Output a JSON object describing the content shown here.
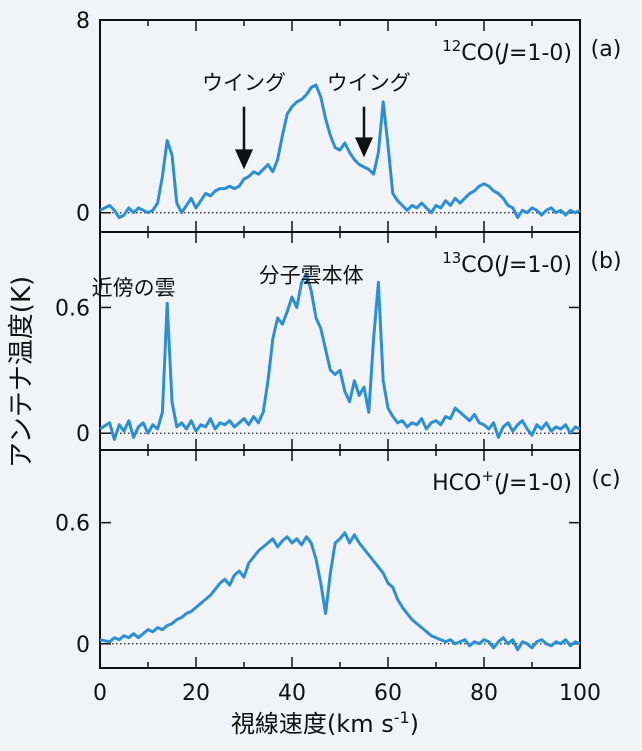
{
  "figure": {
    "ylabel": "アンテナ温度(K)",
    "xlabel": "視線速度(km s",
    "xlabel_sup": "-1",
    "xlabel_close": ")",
    "x_ticks": [
      "0",
      "20",
      "40",
      "60",
      "80",
      "100"
    ]
  },
  "chart_data": [
    {
      "type": "line",
      "panel": "(a)",
      "label_sup": "12",
      "label_main": "CO(",
      "label_j": "J",
      "label_tail": "=1-0)",
      "xlim": [
        0,
        100
      ],
      "ylim": [
        -0.8,
        8
      ],
      "yticks": [
        "0",
        "8"
      ],
      "ytick_values": [
        0,
        8
      ],
      "annotations": [
        {
          "text": "ウイング",
          "x": 30,
          "y": 5.1
        },
        {
          "text": "ウイング",
          "x": 56,
          "y": 5.1
        }
      ],
      "arrows": [
        {
          "x": 30,
          "y_from": 4.4,
          "y_to": 1.8
        },
        {
          "x": 55,
          "y_from": 4.4,
          "y_to": 2.3
        }
      ],
      "baseline": 0,
      "color": "#2b8fd6",
      "series": [
        {
          "x": [
            0,
            2,
            3,
            4,
            5,
            6,
            7,
            8,
            9,
            10,
            11,
            12,
            13,
            14,
            15,
            16,
            17,
            18,
            19,
            20,
            21,
            22,
            23,
            24,
            25,
            26,
            27,
            28,
            29,
            30,
            31,
            32,
            33,
            34,
            35,
            36,
            37,
            38,
            39,
            40,
            41,
            42,
            43,
            44,
            45,
            46,
            47,
            48,
            49,
            50,
            51,
            52,
            53,
            54,
            55,
            56,
            57,
            58,
            59,
            60,
            61,
            62,
            63,
            64,
            65,
            66,
            67,
            68,
            69,
            70,
            71,
            72,
            73,
            74,
            75,
            76,
            77,
            78,
            79,
            80,
            81,
            82,
            83,
            84,
            85,
            86,
            87,
            88,
            89,
            90,
            91,
            92,
            93,
            94,
            95,
            96,
            97,
            98,
            99,
            100
          ],
          "y": [
            0.1,
            0.3,
            0.1,
            -0.2,
            -0.1,
            0.2,
            0.0,
            0.2,
            0.1,
            0.0,
            0.1,
            0.4,
            1.5,
            3.0,
            2.4,
            0.4,
            0.0,
            0.3,
            0.6,
            0.2,
            0.5,
            0.8,
            0.7,
            0.9,
            1.0,
            1.0,
            1.1,
            1.0,
            1.1,
            1.4,
            1.5,
            1.7,
            1.6,
            1.8,
            2.0,
            1.7,
            2.2,
            3.2,
            4.1,
            4.4,
            4.6,
            4.7,
            4.9,
            5.2,
            5.3,
            4.8,
            3.9,
            3.2,
            2.7,
            2.6,
            2.9,
            2.5,
            2.2,
            2.0,
            1.9,
            1.8,
            1.6,
            2.5,
            4.6,
            2.8,
            0.8,
            0.5,
            0.3,
            0.1,
            0.3,
            0.2,
            0.4,
            0.2,
            0.0,
            0.3,
            0.2,
            0.5,
            0.3,
            0.6,
            0.4,
            0.6,
            0.8,
            0.9,
            1.1,
            1.2,
            1.1,
            0.9,
            0.8,
            0.6,
            0.3,
            0.2,
            -0.2,
            0.1,
            0.0,
            0.2,
            0.1,
            -0.1,
            0.1,
            0.2,
            0.0,
            0.1,
            -0.1,
            0.1,
            0.0,
            0.1
          ]
        }
      ]
    },
    {
      "type": "line",
      "panel": "(b)",
      "label_sup": "13",
      "label_main": "CO(",
      "label_j": "J",
      "label_tail": "=1-0)",
      "xlim": [
        0,
        100
      ],
      "ylim": [
        -0.08,
        0.96
      ],
      "yticks": [
        "0.6",
        "0"
      ],
      "ytick_values": [
        0.6,
        0
      ],
      "annotations": [
        {
          "text": "近傍の雲",
          "x": 7,
          "y": 0.66
        },
        {
          "text": "分子雲本体",
          "x": 44,
          "y": 0.72
        }
      ],
      "arrows": [],
      "baseline": 0,
      "color": "#2b8fd6",
      "series": [
        {
          "x": [
            0,
            2,
            3,
            4,
            5,
            6,
            7,
            8,
            9,
            10,
            11,
            12,
            13,
            14,
            15,
            16,
            17,
            18,
            19,
            20,
            21,
            22,
            23,
            24,
            25,
            26,
            27,
            28,
            29,
            30,
            31,
            32,
            33,
            34,
            35,
            36,
            37,
            38,
            39,
            40,
            41,
            42,
            43,
            44,
            45,
            46,
            47,
            48,
            49,
            50,
            51,
            52,
            53,
            54,
            55,
            56,
            57,
            58,
            59,
            60,
            61,
            62,
            63,
            64,
            65,
            66,
            67,
            68,
            69,
            70,
            71,
            72,
            73,
            74,
            75,
            76,
            77,
            78,
            79,
            80,
            81,
            82,
            83,
            84,
            85,
            86,
            87,
            88,
            89,
            90,
            91,
            92,
            93,
            94,
            95,
            96,
            97,
            98,
            99,
            100
          ],
          "y": [
            0.02,
            0.05,
            -0.03,
            0.04,
            0.01,
            0.06,
            -0.02,
            0.03,
            0.05,
            0.0,
            0.04,
            0.02,
            0.1,
            0.62,
            0.15,
            0.03,
            0.05,
            0.02,
            0.06,
            0.01,
            0.04,
            0.03,
            0.07,
            0.02,
            0.05,
            0.04,
            0.06,
            0.03,
            0.05,
            0.07,
            0.04,
            0.08,
            0.05,
            0.1,
            0.25,
            0.45,
            0.55,
            0.52,
            0.58,
            0.65,
            0.6,
            0.72,
            0.76,
            0.68,
            0.55,
            0.5,
            0.4,
            0.3,
            0.28,
            0.3,
            0.2,
            0.15,
            0.25,
            0.18,
            0.22,
            0.1,
            0.45,
            0.72,
            0.25,
            0.12,
            0.08,
            0.05,
            0.06,
            0.03,
            0.05,
            0.04,
            0.07,
            0.02,
            0.05,
            0.06,
            0.04,
            0.08,
            0.07,
            0.12,
            0.1,
            0.08,
            0.06,
            0.09,
            0.05,
            0.04,
            0.02,
            0.05,
            -0.02,
            0.03,
            0.05,
            0.01,
            0.04,
            0.06,
            0.02,
            -0.01,
            0.04,
            0.02,
            0.05,
            0.01,
            0.03,
            0.02,
            0.04,
            0.0,
            0.03,
            0.02
          ]
        }
      ]
    },
    {
      "type": "line",
      "panel": "(c)",
      "label_sup": "+",
      "label_main": "HCO",
      "label_j": "J",
      "label_tail": "=1-0)",
      "xlim": [
        0,
        100
      ],
      "ylim": [
        -0.12,
        0.96
      ],
      "yticks": [
        "0.6",
        "0"
      ],
      "ytick_values": [
        0.6,
        0
      ],
      "annotations": [],
      "arrows": [],
      "baseline": 0,
      "color": "#2b8fd6",
      "series": [
        {
          "x": [
            0,
            2,
            3,
            4,
            5,
            6,
            7,
            8,
            9,
            10,
            11,
            12,
            13,
            14,
            15,
            16,
            17,
            18,
            19,
            20,
            21,
            22,
            23,
            24,
            25,
            26,
            27,
            28,
            29,
            30,
            31,
            32,
            33,
            34,
            35,
            36,
            37,
            38,
            39,
            40,
            41,
            42,
            43,
            44,
            45,
            46,
            47,
            48,
            49,
            50,
            51,
            52,
            53,
            54,
            55,
            56,
            57,
            58,
            59,
            60,
            61,
            62,
            63,
            64,
            65,
            66,
            67,
            68,
            69,
            70,
            71,
            72,
            73,
            74,
            75,
            76,
            77,
            78,
            79,
            80,
            81,
            82,
            83,
            84,
            85,
            86,
            87,
            88,
            89,
            90,
            91,
            92,
            93,
            94,
            95,
            96,
            97,
            98,
            99,
            100
          ],
          "y": [
            0.02,
            0.01,
            0.03,
            0.02,
            0.04,
            0.03,
            0.05,
            0.03,
            0.05,
            0.07,
            0.06,
            0.08,
            0.07,
            0.09,
            0.1,
            0.12,
            0.13,
            0.15,
            0.16,
            0.18,
            0.2,
            0.22,
            0.24,
            0.27,
            0.3,
            0.32,
            0.29,
            0.34,
            0.36,
            0.33,
            0.4,
            0.43,
            0.46,
            0.48,
            0.5,
            0.52,
            0.48,
            0.51,
            0.53,
            0.5,
            0.52,
            0.49,
            0.53,
            0.5,
            0.42,
            0.3,
            0.15,
            0.35,
            0.5,
            0.52,
            0.55,
            0.5,
            0.54,
            0.5,
            0.47,
            0.44,
            0.41,
            0.38,
            0.35,
            0.3,
            0.28,
            0.22,
            0.18,
            0.15,
            0.12,
            0.1,
            0.08,
            0.06,
            0.04,
            0.03,
            0.02,
            0.01,
            0.02,
            0.0,
            0.01,
            0.02,
            -0.01,
            0.01,
            0.0,
            0.02,
            0.01,
            -0.02,
            0.01,
            0.03,
            0.0,
            0.02,
            -0.03,
            0.01,
            0.0,
            -0.02,
            0.01,
            0.02,
            0.0,
            -0.01,
            0.01,
            0.0,
            0.02,
            -0.01,
            0.01,
            0.0
          ]
        }
      ]
    }
  ]
}
